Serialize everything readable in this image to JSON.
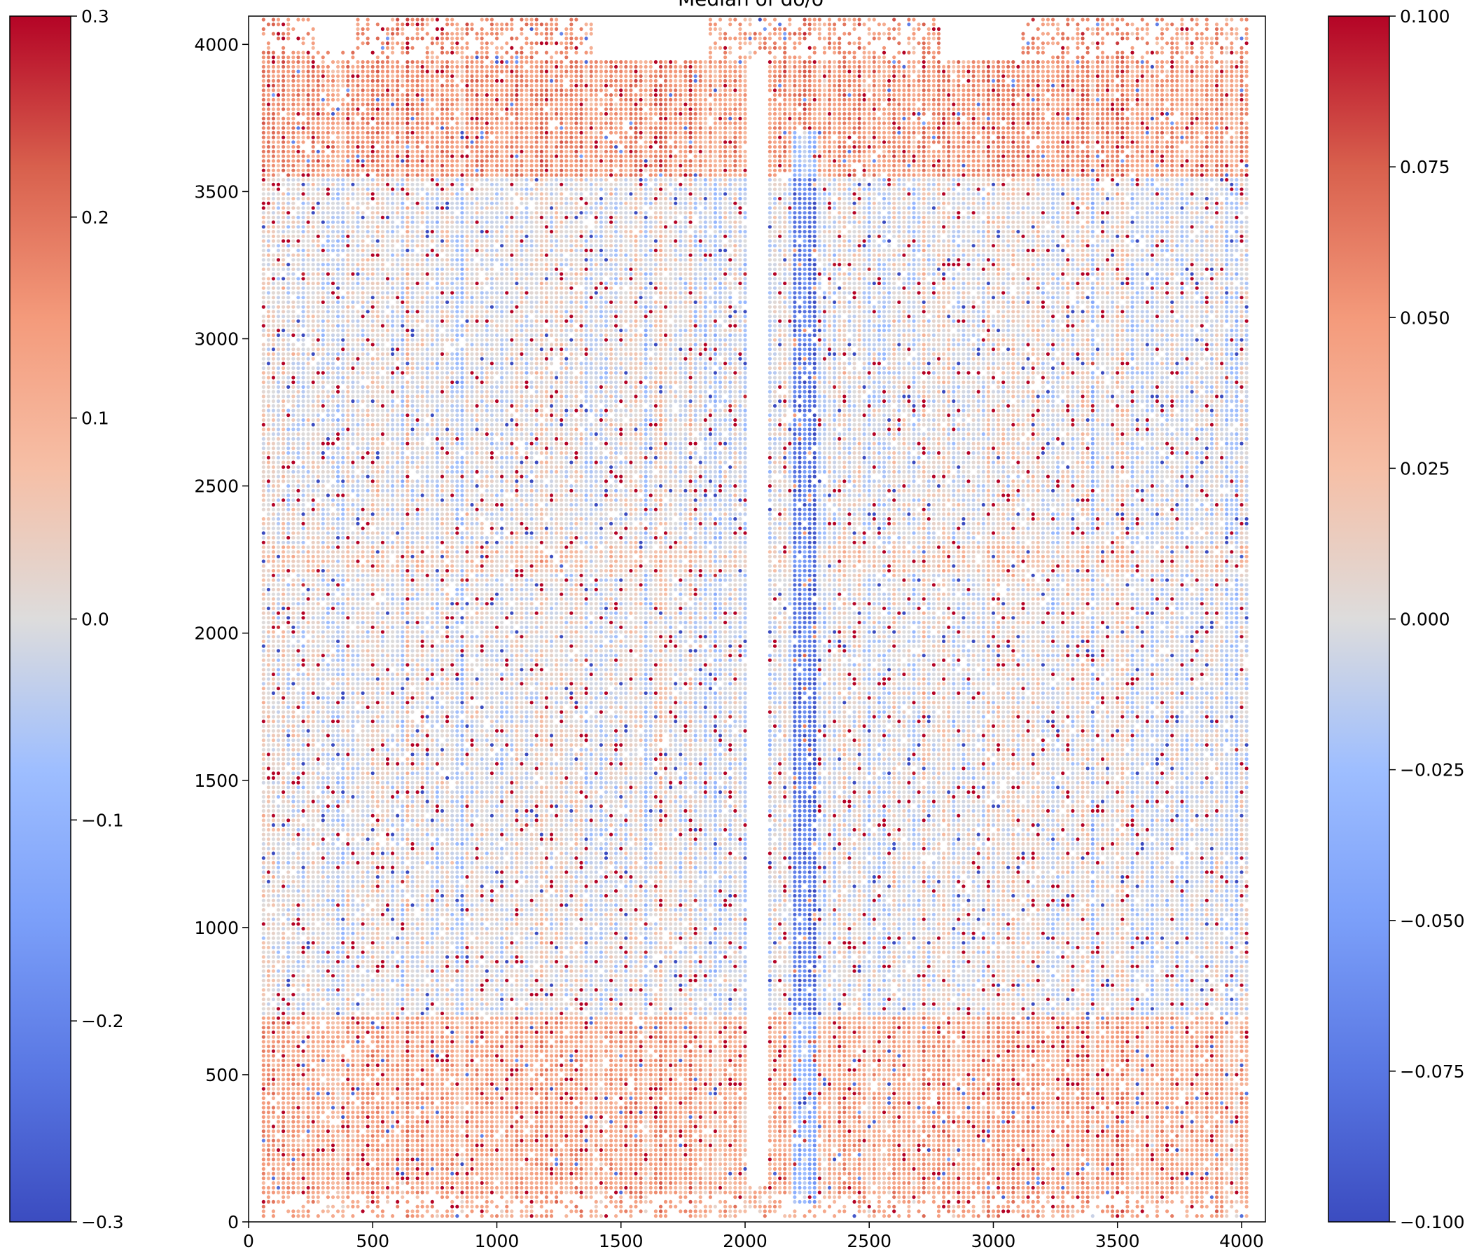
{
  "chart_data": [
    {
      "type": "scatter",
      "title": "Median of do/o",
      "xlabel": "",
      "ylabel": "",
      "xlim": [
        0,
        4096
      ],
      "ylim": [
        0,
        4096
      ],
      "x_ticks": [
        "0",
        "500",
        "1000",
        "1500",
        "2000",
        "2500",
        "3000",
        "3500",
        "4000"
      ],
      "y_ticks": [
        "0",
        "500",
        "1000",
        "1500",
        "2000",
        "2500",
        "3000",
        "3500",
        "4000"
      ],
      "grid": false,
      "colormap": "coolwarm",
      "grid_sampling": {
        "x_range": [
          60,
          4030
        ],
        "y_range": [
          20,
          4090
        ],
        "column_spacing": 20,
        "row_spacing": 16
      },
      "empty_regions": [
        {
          "x": [
            2010,
            2080
          ],
          "y": [
            120,
            3940
          ]
        },
        {
          "x": [
            280,
            420
          ],
          "y": [
            3980,
            4096
          ]
        },
        {
          "x": [
            1400,
            1850
          ],
          "y": [
            3950,
            4096
          ]
        },
        {
          "x": [
            2800,
            3100
          ],
          "y": [
            3950,
            4096
          ]
        }
      ],
      "features": [
        {
          "x": [
            2200,
            2280
          ],
          "y": [
            60,
            3700
          ],
          "value_bias": -0.08,
          "note": ""
        },
        {
          "x": [
            60,
            4030
          ],
          "y": [
            0,
            700
          ],
          "value_bias": 0.04,
          "note": ""
        },
        {
          "x": [
            60,
            4030
          ],
          "y": [
            3550,
            4096
          ],
          "value_bias": 0.05,
          "note": ""
        },
        {
          "x": [
            60,
            4030
          ],
          "y": [
            2200,
            2300
          ],
          "value_bias": 0.015,
          "note": ""
        }
      ]
    },
    {
      "type": "colorbar",
      "colormap": "coolwarm",
      "range": [
        -0.3,
        0.3
      ],
      "ticks": [
        "−0.3",
        "−0.2",
        "−0.1",
        "0.0",
        "0.1",
        "0.2",
        "0.3"
      ],
      "tick_values": [
        -0.3,
        -0.2,
        -0.1,
        0.0,
        0.1,
        0.2,
        0.3
      ]
    },
    {
      "type": "colorbar",
      "colormap": "coolwarm",
      "range": [
        -0.1,
        0.1
      ],
      "ticks": [
        "−0.100",
        "−0.075",
        "−0.050",
        "−0.025",
        "0.000",
        "0.025",
        "0.050",
        "0.075",
        "0.100"
      ],
      "tick_values": [
        -0.1,
        -0.075,
        -0.05,
        -0.025,
        0.0,
        0.025,
        0.05,
        0.075,
        0.1
      ]
    }
  ]
}
